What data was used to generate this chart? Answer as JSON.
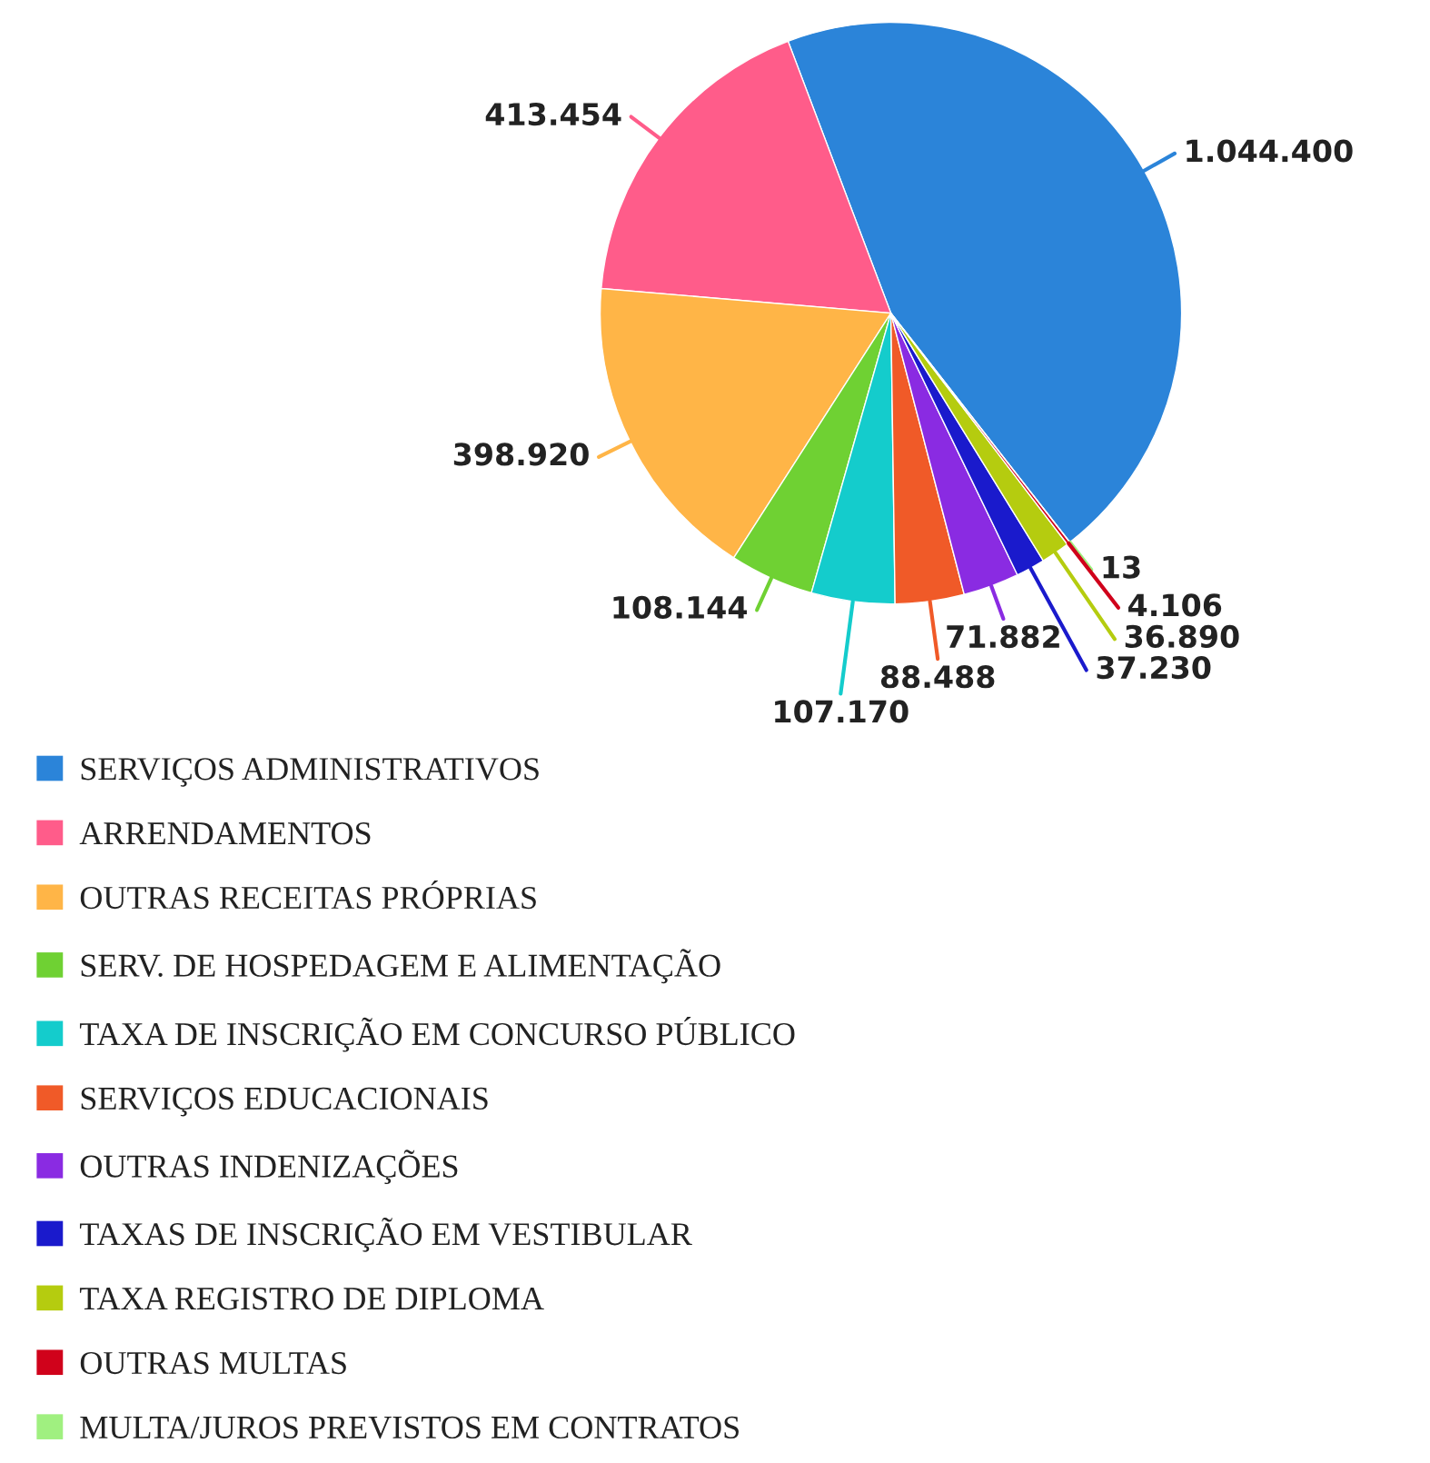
{
  "chart_data": {
    "type": "pie",
    "categories": [
      "SERVIÇOS ADMINISTRATIVOS",
      "ARRENDAMENTOS",
      "OUTRAS RECEITAS PRÓPRIAS",
      "SERV. DE HOSPEDAGEM E ALIMENTAÇÃO",
      "TAXA DE INSCRIÇÃO EM CONCURSO PÚBLICO",
      "SERVIÇOS EDUCACIONAIS",
      "OUTRAS INDENIZAÇÕES",
      "TAXAS DE INSCRIÇÃO EM VESTIBULAR",
      "TAXA REGISTRO DE DIPLOMA",
      "OUTRAS MULTAS",
      "MULTA/JUROS PREVISTOS EM CONTRATOS"
    ],
    "values": [
      1044400,
      413454,
      398920,
      108144,
      107170,
      88488,
      71882,
      37230,
      36890,
      4106,
      13
    ],
    "colors": [
      "#2b84d9",
      "#ff5c8a",
      "#ffb547",
      "#6fd133",
      "#14cccc",
      "#f05a28",
      "#8a2be2",
      "#1a1acc",
      "#b5cc0f",
      "#d0021b",
      "#a0f080"
    ],
    "value_labels": [
      "1.044.400",
      "413.454",
      "398.920",
      "108.144",
      "107.170",
      "88.488",
      "71.882",
      "37.230",
      "36.890",
      "4.106",
      "13"
    ],
    "legend": "bottom left"
  }
}
